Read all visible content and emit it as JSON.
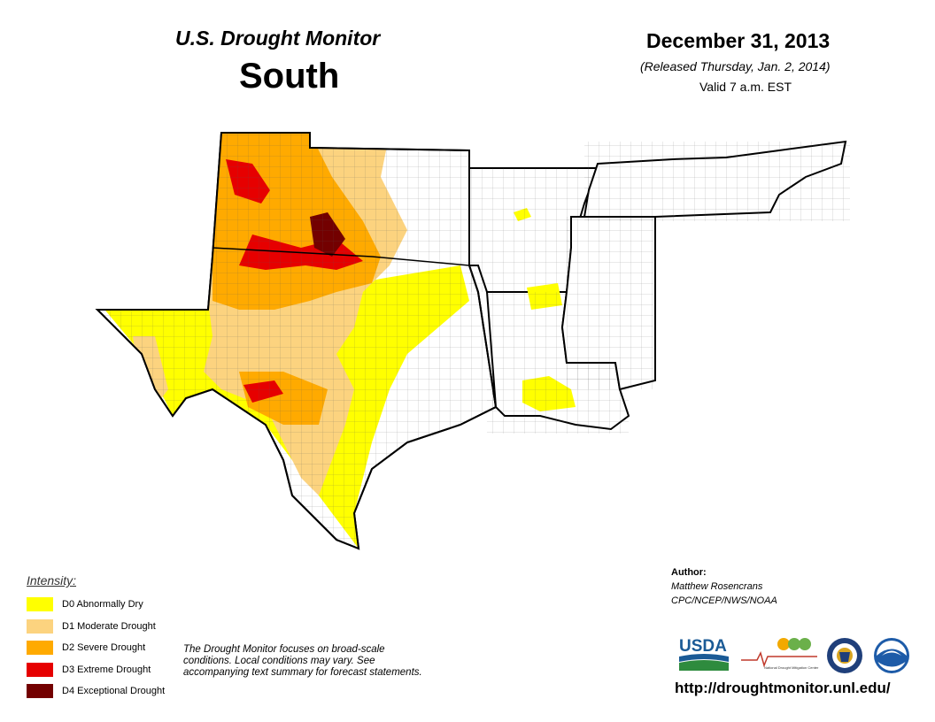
{
  "header": {
    "monitor_title": "U.S. Drought Monitor",
    "region": "South",
    "date": "December 31, 2013",
    "released": "(Released Thursday, Jan. 2, 2014)",
    "valid": "Valid 7 a.m. EST"
  },
  "legend": {
    "title": "Intensity:",
    "items": [
      {
        "label": "D0 Abnormally Dry",
        "color": "#ffff00"
      },
      {
        "label": "D1 Moderate Drought",
        "color": "#fcd37f"
      },
      {
        "label": "D2 Severe Drought",
        "color": "#ffaa00"
      },
      {
        "label": "D3 Extreme Drought",
        "color": "#e60000"
      },
      {
        "label": "D4 Exceptional Drought",
        "color": "#730000"
      }
    ]
  },
  "note": "The Drought Monitor focuses on broad-scale conditions. Local conditions may vary. See accompanying text summary for forecast statements.",
  "author": {
    "label": "Author:",
    "name": "Matthew Rosencrans",
    "org": "CPC/NCEP/NWS/NOAA"
  },
  "logos": {
    "usda": "USDA",
    "ndmc": "National Drought Mitigation Center",
    "doc_icon": "department-of-commerce-seal",
    "noaa": "NOAA"
  },
  "url": "http://droughtmonitor.unl.edu/",
  "colors": {
    "d0": "#ffff00",
    "d1": "#fcd37f",
    "d2": "#ffaa00",
    "d3": "#e60000",
    "d4": "#730000",
    "none": "#ffffff",
    "border": "#000000"
  }
}
